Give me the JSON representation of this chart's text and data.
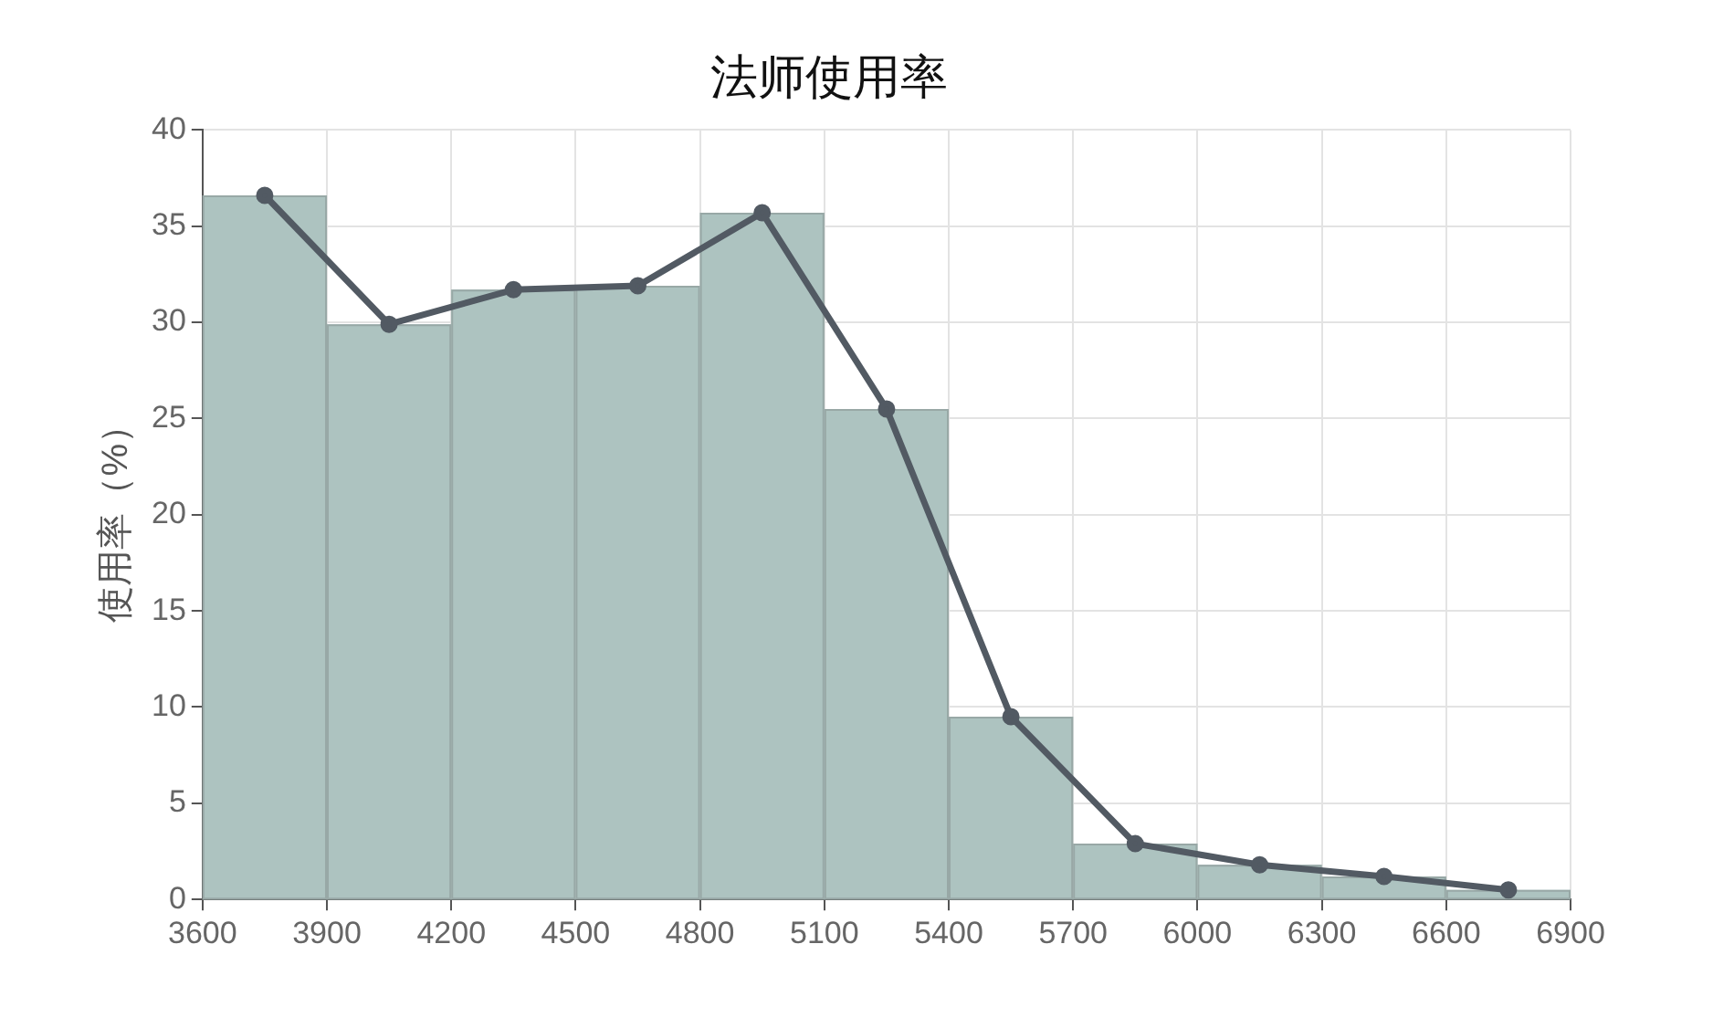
{
  "chart_data": {
    "type": "histogram",
    "title": "法师使用率",
    "ylabel": "使用率（%）",
    "bins": [
      3600,
      3900,
      4200,
      4500,
      4800,
      5100,
      5400,
      5700,
      6000,
      6300,
      6600,
      6900
    ],
    "series": [
      {
        "color": "#adc3c0",
        "values": [
          36.6,
          29.9,
          31.7,
          31.9,
          35.7,
          25.5,
          9.5,
          2.9,
          1.8,
          1.2,
          0.5
        ]
      },
      {
        "type": "line",
        "color": "#525a63",
        "x": [
          3750,
          4050,
          4350,
          4650,
          4950,
          5250,
          5550,
          5850,
          6150,
          6450,
          6750
        ],
        "values": [
          36.6,
          29.9,
          31.7,
          31.9,
          35.7,
          25.5,
          9.5,
          2.9,
          1.8,
          1.2,
          0.5
        ],
        "marker": "circle",
        "line_style": "solid"
      }
    ],
    "xlim": [
      3600,
      6900
    ],
    "xticks": [
      3600,
      3900,
      4200,
      4500,
      4800,
      5100,
      5400,
      5700,
      6000,
      6300,
      6600,
      6900
    ],
    "ylim": [
      0,
      40
    ],
    "yticks": [
      0,
      5,
      10,
      15,
      20,
      25,
      30,
      35,
      40
    ],
    "grid": true,
    "legend": false
  }
}
